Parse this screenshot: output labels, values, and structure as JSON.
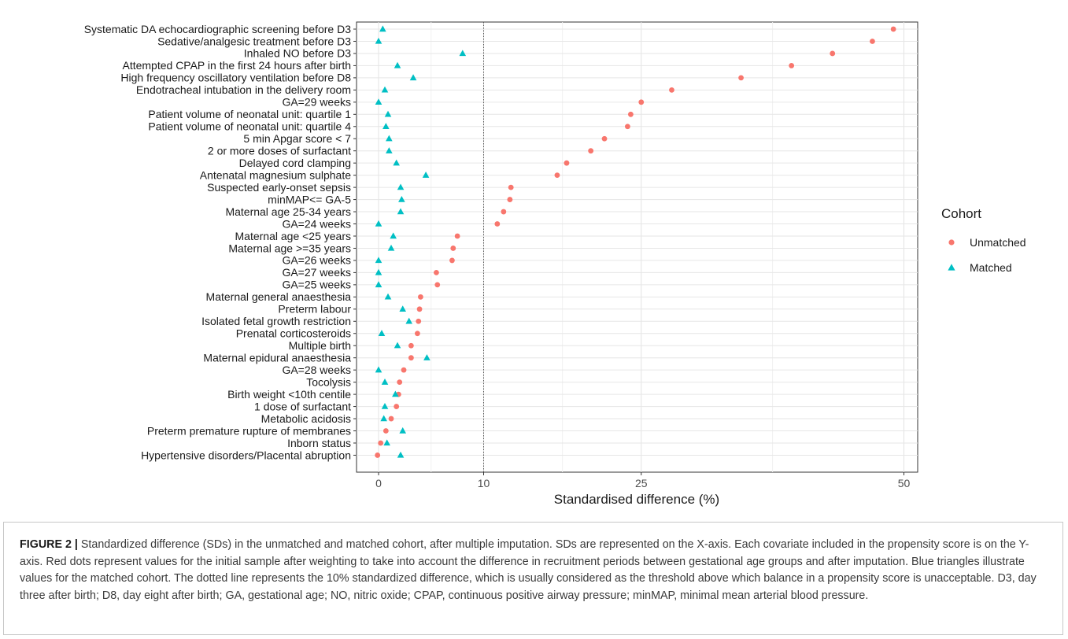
{
  "chart_data": {
    "type": "scatter",
    "orientation": "horizontal-dotplot",
    "xlabel": "Standardised difference (%)",
    "xticks": [
      0,
      10,
      25,
      50
    ],
    "xlim": [
      -1.5,
      51.5
    ],
    "reference_line": {
      "x": 10,
      "style": "dotted"
    },
    "grid": true,
    "legend_title": "Cohort",
    "legend_position": "right",
    "categories": [
      "Systematic DA echocardiographic screening before D3",
      "Sedative/analgesic treatment before D3",
      "Inhaled NO before D3",
      "Attempted CPAP in the first 24 hours after birth",
      "High frequency oscillatory ventilation before D8",
      "Endotracheal intubation in the delivery room",
      "GA=29 weeks",
      "Patient volume of neonatal unit: quartile 1",
      "Patient volume of neonatal unit: quartile 4",
      "5 min Apgar score < 7",
      "2 or more doses of surfactant",
      "Delayed cord clamping",
      "Antenatal magnesium sulphate",
      "Suspected early-onset sepsis",
      "minMAP<= GA-5",
      "Maternal age 25-34 years",
      "GA=24 weeks",
      "Maternal age <25 years",
      "Maternal age >=35 years",
      "GA=26 weeks",
      "GA=27 weeks",
      "GA=25 weeks",
      "Maternal general anaesthesia",
      "Preterm labour",
      "Isolated fetal growth restriction",
      "Prenatal corticosteroids",
      "Multiple birth",
      "Maternal epidural anaesthesia",
      "GA=28 weeks",
      "Tocolysis",
      "Birth weight <10th centile",
      "1 dose of surfactant",
      "Metabolic acidosis",
      "Preterm premature rupture of membranes",
      "Inborn status",
      "Hypertensive disorders/Placental abruption"
    ],
    "series": [
      {
        "name": "Unmatched",
        "marker": "circle",
        "color": "#F8766D",
        "values": [
          49.0,
          47.0,
          43.2,
          39.3,
          34.5,
          27.9,
          25.0,
          24.0,
          23.7,
          21.5,
          20.2,
          17.9,
          17.0,
          12.6,
          12.5,
          11.9,
          11.3,
          7.5,
          7.1,
          7.0,
          5.5,
          5.6,
          4.0,
          3.9,
          3.8,
          3.7,
          3.1,
          3.1,
          2.4,
          2.0,
          1.9,
          1.7,
          1.2,
          0.7,
          0.2,
          -0.1
        ]
      },
      {
        "name": "Matched",
        "marker": "triangle",
        "color": "#00BFC4",
        "values": [
          0.4,
          0.0,
          8.0,
          1.8,
          3.3,
          0.6,
          0.0,
          0.9,
          0.7,
          1.0,
          1.0,
          1.7,
          4.5,
          2.1,
          2.2,
          2.1,
          0.0,
          1.4,
          1.2,
          0.0,
          0.0,
          0.0,
          0.9,
          2.3,
          2.9,
          0.3,
          1.8,
          4.6,
          0.0,
          0.6,
          1.6,
          0.6,
          0.5,
          2.3,
          0.8,
          2.1
        ]
      }
    ]
  },
  "caption": {
    "figure_label": "FIGURE 2 |",
    "text": " Standardized difference (SDs) in the unmatched and matched cohort, after multiple imputation. SDs are represented on the X-axis. Each covariate included in the propensity score is on the Y-axis. Red dots represent values for the initial sample after weighting to take into account the difference in recruitment periods between gestational age groups and after imputation. Blue triangles illustrate values for the matched cohort. The dotted line represents the 10% standardized difference, which is usually considered as the threshold above which balance in a propensity score is unacceptable. D3, day three after birth; D8, day eight after birth; GA, gestational age; NO, nitric oxide; CPAP, continuous positive airway pressure; minMAP, minimal mean arterial blood pressure."
  }
}
